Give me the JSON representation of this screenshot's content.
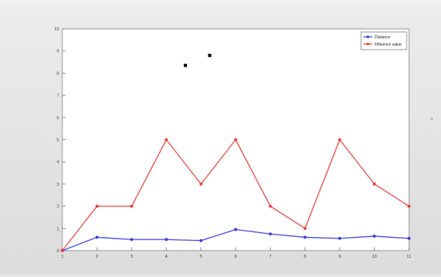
{
  "chart_data": {
    "type": "line",
    "x": [
      1,
      2,
      3,
      4,
      5,
      6,
      7,
      8,
      9,
      10,
      11
    ],
    "xticks": [
      "1",
      "2",
      "3",
      "4",
      "5",
      "6",
      "7",
      "8",
      "9",
      "10",
      "11"
    ],
    "yticks": [
      "0",
      "1",
      "2",
      "3",
      "4",
      "5",
      "6",
      "7",
      "8",
      "9",
      "10"
    ],
    "xlim": [
      1,
      11
    ],
    "ylim": [
      0,
      10
    ],
    "grid": false,
    "legend_position": "top-right",
    "series": [
      {
        "name": "Distance",
        "color": "#3a3ae8",
        "values": [
          0,
          0.6,
          0.5,
          0.5,
          0.45,
          0.95,
          0.75,
          0.6,
          0.55,
          0.65,
          0.55
        ]
      },
      {
        "name": "Influence value",
        "color": "#ee3b3b",
        "values": [
          0,
          2,
          2,
          5,
          3,
          5,
          2,
          1,
          5,
          3,
          2
        ]
      }
    ],
    "annotations_markers": [
      {
        "x": 4.55,
        "y": 8.35,
        "color": "#000000"
      },
      {
        "x": 5.25,
        "y": 8.8,
        "color": "#000000"
      }
    ]
  }
}
